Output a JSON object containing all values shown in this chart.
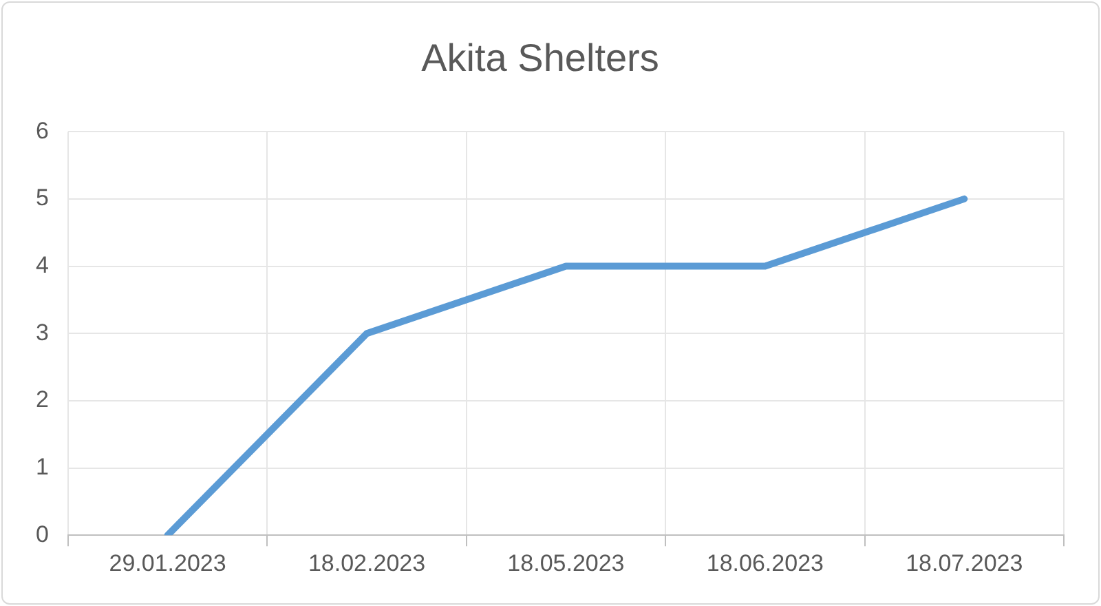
{
  "chart_data": {
    "type": "line",
    "title": "Akita Shelters",
    "categories": [
      "29.01.2023",
      "18.02.2023",
      "18.05.2023",
      "18.06.2023",
      "18.07.2023"
    ],
    "series": [
      {
        "color": "#5b9bd5",
        "values": [
          0,
          3,
          4,
          4,
          5
        ]
      }
    ],
    "ylim": [
      0,
      6
    ],
    "yticks": [
      0,
      1,
      2,
      3,
      4,
      5,
      6
    ],
    "grid": true,
    "legend": false,
    "marker": "none",
    "line_style": "solid"
  }
}
